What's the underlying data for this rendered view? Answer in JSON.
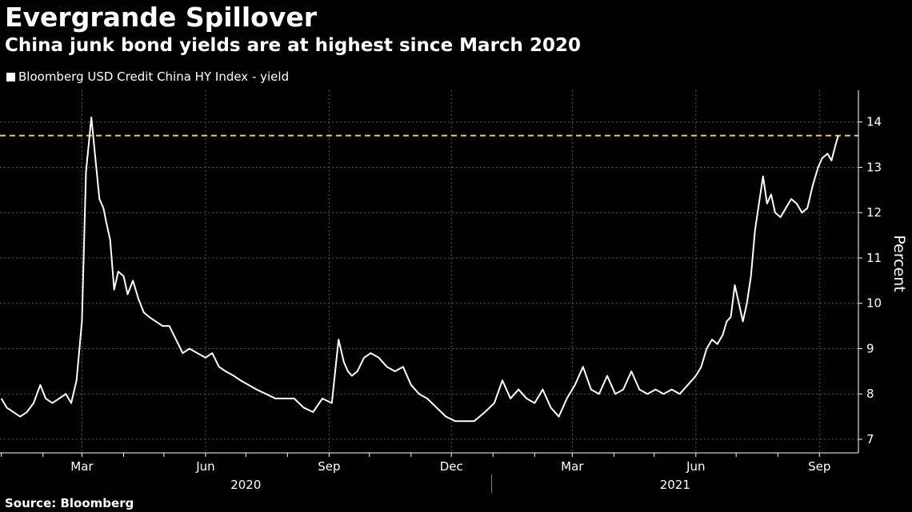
{
  "header": {
    "title": "Evergrande Spillover",
    "subtitle": "China junk bond yields are at highest since March 2020"
  },
  "legend": {
    "label": "Bloomberg USD Credit China HY Index - yield"
  },
  "footer": {
    "source": "Source: Bloomberg"
  },
  "colors": {
    "background": "#000000",
    "series": "#ffffff",
    "reference_line": "#e8d41a",
    "grid": "#5a5a5a"
  },
  "chart_data": {
    "type": "line",
    "title": "Evergrande Spillover",
    "subtitle": "China junk bond yields are at highest since March 2020",
    "ylabel": "Percent",
    "xlabel": "",
    "ylim": [
      6.7,
      14.7
    ],
    "xlim": [
      "2019-12-31",
      "2021-09-30"
    ],
    "yticks": [
      7,
      8,
      9,
      10,
      11,
      12,
      13,
      14
    ],
    "xticks": [
      {
        "date": "2020-03-01",
        "label": "Mar"
      },
      {
        "date": "2020-06-01",
        "label": "Jun"
      },
      {
        "date": "2020-09-01",
        "label": "Sep"
      },
      {
        "date": "2020-12-01",
        "label": "Dec"
      },
      {
        "date": "2021-03-01",
        "label": "Mar"
      },
      {
        "date": "2021-06-01",
        "label": "Jun"
      },
      {
        "date": "2021-09-01",
        "label": "Sep"
      }
    ],
    "year_labels": [
      {
        "label": "2020",
        "start": "2019-12-31",
        "end": "2020-12-31"
      },
      {
        "label": "2021",
        "start": "2020-12-31",
        "end": "2021-09-30"
      }
    ],
    "year_separator": "2020-12-31",
    "grid": true,
    "legend_position": "top-left",
    "reference_lines": [
      {
        "y": 13.7,
        "style": "dashed"
      }
    ],
    "series": [
      {
        "name": "Bloomberg USD Credit China HY Index - yield",
        "x": [
          "2020-01-01",
          "2020-01-05",
          "2020-01-10",
          "2020-01-15",
          "2020-01-20",
          "2020-01-25",
          "2020-01-30",
          "2020-02-03",
          "2020-02-08",
          "2020-02-13",
          "2020-02-18",
          "2020-02-22",
          "2020-02-26",
          "2020-03-01",
          "2020-03-04",
          "2020-03-08",
          "2020-03-12",
          "2020-03-14",
          "2020-03-17",
          "2020-03-19",
          "2020-03-22",
          "2020-03-25",
          "2020-03-28",
          "2020-04-01",
          "2020-04-04",
          "2020-04-08",
          "2020-04-12",
          "2020-04-16",
          "2020-04-20",
          "2020-04-25",
          "2020-04-30",
          "2020-05-05",
          "2020-05-10",
          "2020-05-15",
          "2020-05-20",
          "2020-05-26",
          "2020-06-01",
          "2020-06-06",
          "2020-06-11",
          "2020-06-16",
          "2020-06-22",
          "2020-06-27",
          "2020-07-03",
          "2020-07-09",
          "2020-07-16",
          "2020-07-23",
          "2020-07-30",
          "2020-08-06",
          "2020-08-13",
          "2020-08-20",
          "2020-08-27",
          "2020-09-03",
          "2020-09-08",
          "2020-09-12",
          "2020-09-15",
          "2020-09-18",
          "2020-09-22",
          "2020-09-27",
          "2020-10-02",
          "2020-10-08",
          "2020-10-14",
          "2020-10-20",
          "2020-10-26",
          "2020-11-01",
          "2020-11-07",
          "2020-11-13",
          "2020-11-20",
          "2020-11-27",
          "2020-12-04",
          "2020-12-11",
          "2020-12-18",
          "2020-12-26",
          "2021-01-02",
          "2021-01-08",
          "2021-01-14",
          "2021-01-20",
          "2021-01-26",
          "2021-02-01",
          "2021-02-07",
          "2021-02-13",
          "2021-02-19",
          "2021-02-25",
          "2021-03-03",
          "2021-03-09",
          "2021-03-15",
          "2021-03-21",
          "2021-03-27",
          "2021-04-02",
          "2021-04-08",
          "2021-04-14",
          "2021-04-20",
          "2021-04-26",
          "2021-05-02",
          "2021-05-08",
          "2021-05-14",
          "2021-05-20",
          "2021-05-26",
          "2021-06-01",
          "2021-06-05",
          "2021-06-09",
          "2021-06-13",
          "2021-06-17",
          "2021-06-21",
          "2021-06-24",
          "2021-06-27",
          "2021-06-30",
          "2021-07-03",
          "2021-07-06",
          "2021-07-09",
          "2021-07-12",
          "2021-07-15",
          "2021-07-18",
          "2021-07-21",
          "2021-07-24",
          "2021-07-27",
          "2021-07-30",
          "2021-08-03",
          "2021-08-07",
          "2021-08-11",
          "2021-08-15",
          "2021-08-19",
          "2021-08-23",
          "2021-08-27",
          "2021-08-31",
          "2021-09-03",
          "2021-09-07",
          "2021-09-10",
          "2021-09-13",
          "2021-09-15"
        ],
        "values": [
          7.9,
          7.7,
          7.6,
          7.5,
          7.6,
          7.8,
          8.2,
          7.9,
          7.8,
          7.9,
          8.0,
          7.8,
          8.3,
          9.6,
          12.9,
          14.1,
          12.9,
          12.3,
          12.1,
          11.8,
          11.4,
          10.3,
          10.7,
          10.6,
          10.2,
          10.5,
          10.1,
          9.8,
          9.7,
          9.6,
          9.5,
          9.5,
          9.2,
          8.9,
          9.0,
          8.9,
          8.8,
          8.9,
          8.6,
          8.5,
          8.4,
          8.3,
          8.2,
          8.1,
          8.0,
          7.9,
          7.9,
          7.9,
          7.7,
          7.6,
          7.9,
          7.8,
          9.2,
          8.7,
          8.5,
          8.4,
          8.5,
          8.8,
          8.9,
          8.8,
          8.6,
          8.5,
          8.6,
          8.2,
          8.0,
          7.9,
          7.7,
          7.5,
          7.4,
          7.4,
          7.4,
          7.6,
          7.8,
          8.3,
          7.9,
          8.1,
          7.9,
          7.8,
          8.1,
          7.7,
          7.5,
          7.9,
          8.2,
          8.6,
          8.1,
          8.0,
          8.4,
          8.0,
          8.1,
          8.5,
          8.1,
          8.0,
          8.1,
          8.0,
          8.1,
          8.0,
          8.2,
          8.4,
          8.6,
          9.0,
          9.2,
          9.1,
          9.3,
          9.6,
          9.7,
          10.4,
          10.0,
          9.6,
          10.0,
          10.6,
          11.6,
          12.2,
          12.8,
          12.2,
          12.4,
          12.0,
          11.9,
          12.1,
          12.3,
          12.2,
          12.0,
          12.1,
          12.6,
          13.0,
          13.2,
          13.3,
          13.15,
          13.5,
          13.7
        ]
      }
    ]
  }
}
